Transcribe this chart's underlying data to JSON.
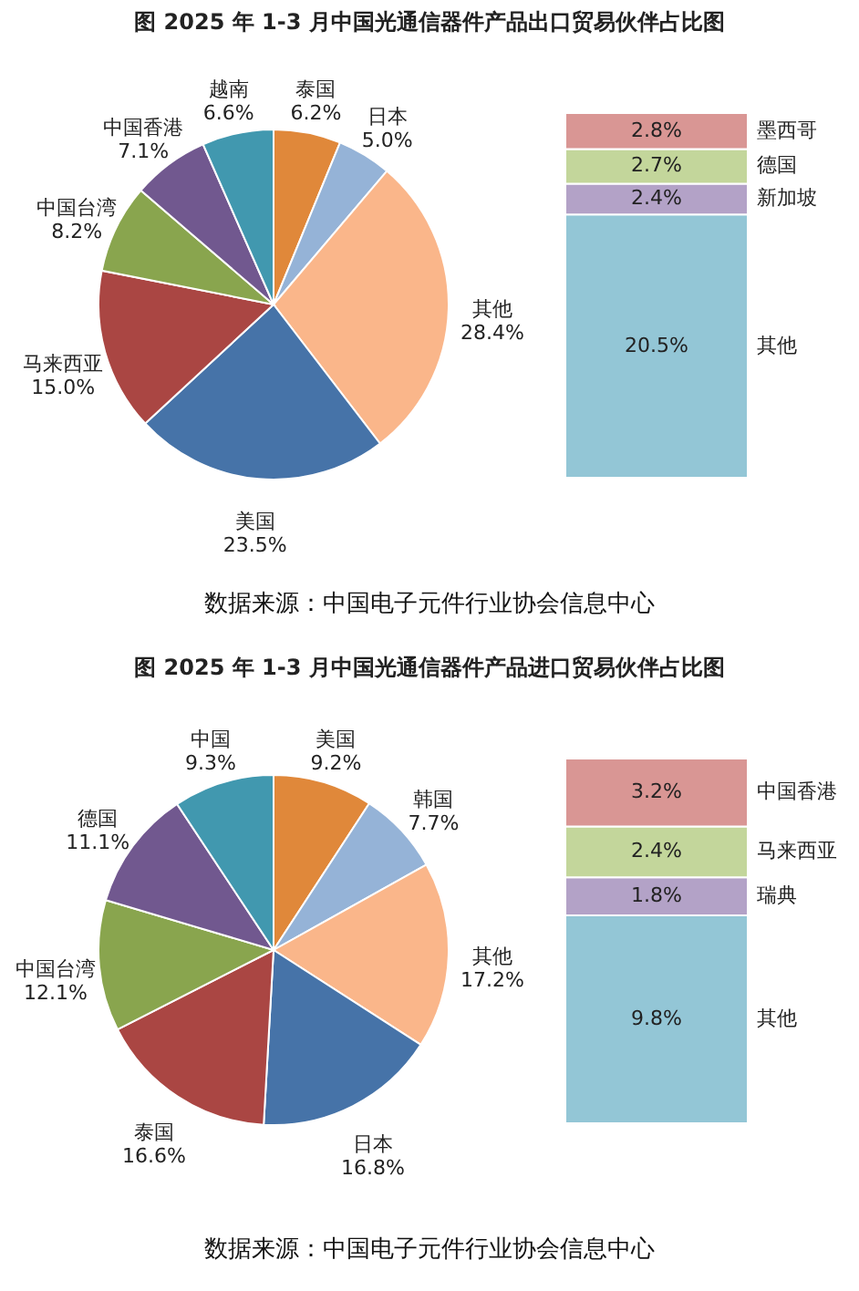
{
  "chart_data": [
    {
      "type": "pie",
      "title": "图   2025 年 1-3 月中国光通信器件产品出口贸易伙伴占比图",
      "annotations": [
        "数据来源：中国电子元件行业协会信息中心"
      ],
      "categories": [
        "泰国",
        "日本",
        "其他",
        "美国",
        "马来西亚",
        "中国台湾",
        "中国香港",
        "越南"
      ],
      "values": [
        6.2,
        5.0,
        28.4,
        23.5,
        15.0,
        8.2,
        7.1,
        6.6
      ],
      "value_labels": [
        "6.2%",
        "5.0%",
        "28.4%",
        "23.5%",
        "15.0%",
        "8.2%",
        "7.1%",
        "6.6%"
      ],
      "colors": [
        "#e0883a",
        "#95b3d7",
        "#fab68a",
        "#4673a8",
        "#aa4643",
        "#89a54e",
        "#71588f",
        "#4198af"
      ]
    },
    {
      "type": "bar",
      "stacked": true,
      "categories": [
        null
      ],
      "series": [
        {
          "name": "其他",
          "color": "#93c6d6",
          "values": [
            20.5
          ],
          "value_labels": [
            "20.5%"
          ]
        },
        {
          "name": "新加坡",
          "color": "#b3a2c7",
          "values": [
            2.4
          ],
          "value_labels": [
            "2.4%"
          ]
        },
        {
          "name": "德国",
          "color": "#c3d69b",
          "values": [
            2.7
          ],
          "value_labels": [
            "2.7%"
          ]
        },
        {
          "name": "墨西哥",
          "color": "#d99694",
          "values": [
            2.8
          ],
          "value_labels": [
            "2.8%"
          ]
        }
      ]
    },
    {
      "type": "pie",
      "title": "图   2025 年 1-3 月中国光通信器件产品进口贸易伙伴占比图",
      "annotations": [
        "数据来源：中国电子元件行业协会信息中心"
      ],
      "categories": [
        "美国",
        "韩国",
        "其他",
        "日本",
        "泰国",
        "中国台湾",
        "德国",
        "中国"
      ],
      "values": [
        9.2,
        7.7,
        17.2,
        16.8,
        16.6,
        12.1,
        11.1,
        9.3
      ],
      "value_labels": [
        "9.2%",
        "7.7%",
        "17.2%",
        "16.8%",
        "16.6%",
        "12.1%",
        "11.1%",
        "9.3%"
      ],
      "colors": [
        "#e0883a",
        "#95b3d7",
        "#fab68a",
        "#4673a8",
        "#aa4643",
        "#89a54e",
        "#71588f",
        "#4198af"
      ]
    },
    {
      "type": "bar",
      "stacked": true,
      "categories": [
        null
      ],
      "series": [
        {
          "name": "其他",
          "color": "#93c6d6",
          "values": [
            9.8
          ],
          "value_labels": [
            "9.8%"
          ]
        },
        {
          "name": "瑞典",
          "color": "#b3a2c7",
          "values": [
            1.8
          ],
          "value_labels": [
            "1.8%"
          ]
        },
        {
          "name": "马来西亚",
          "color": "#c3d69b",
          "values": [
            2.4
          ],
          "value_labels": [
            "2.4%"
          ]
        },
        {
          "name": "中国香港",
          "color": "#d99694",
          "values": [
            3.2
          ],
          "value_labels": [
            "3.2%"
          ]
        }
      ]
    }
  ]
}
